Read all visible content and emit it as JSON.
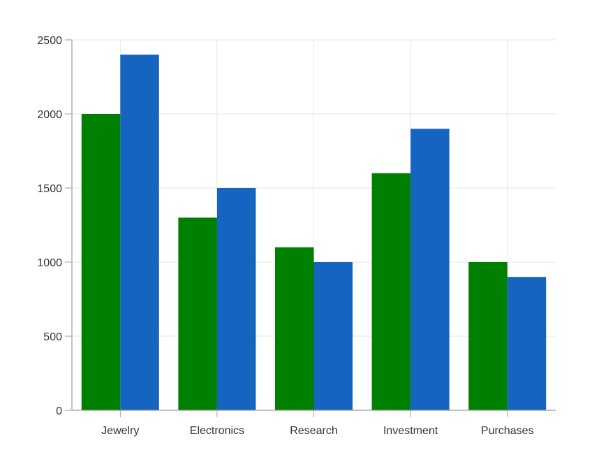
{
  "chart_data": {
    "type": "bar",
    "categories": [
      "Jewelry",
      "Electronics",
      "Research",
      "Investment",
      "Purchases"
    ],
    "series": [
      {
        "values": [
          2000,
          1300,
          1100,
          1600,
          1000
        ],
        "color": "#008000"
      },
      {
        "values": [
          2400,
          1500,
          1000,
          1900,
          900
        ],
        "color": "#1565C0"
      }
    ],
    "ylim": [
      0,
      2500
    ],
    "yticks": [
      "0",
      "500",
      "1000",
      "1500",
      "2000",
      "2500"
    ],
    "grid": true,
    "title": "",
    "xlabel": "",
    "ylabel": ""
  }
}
